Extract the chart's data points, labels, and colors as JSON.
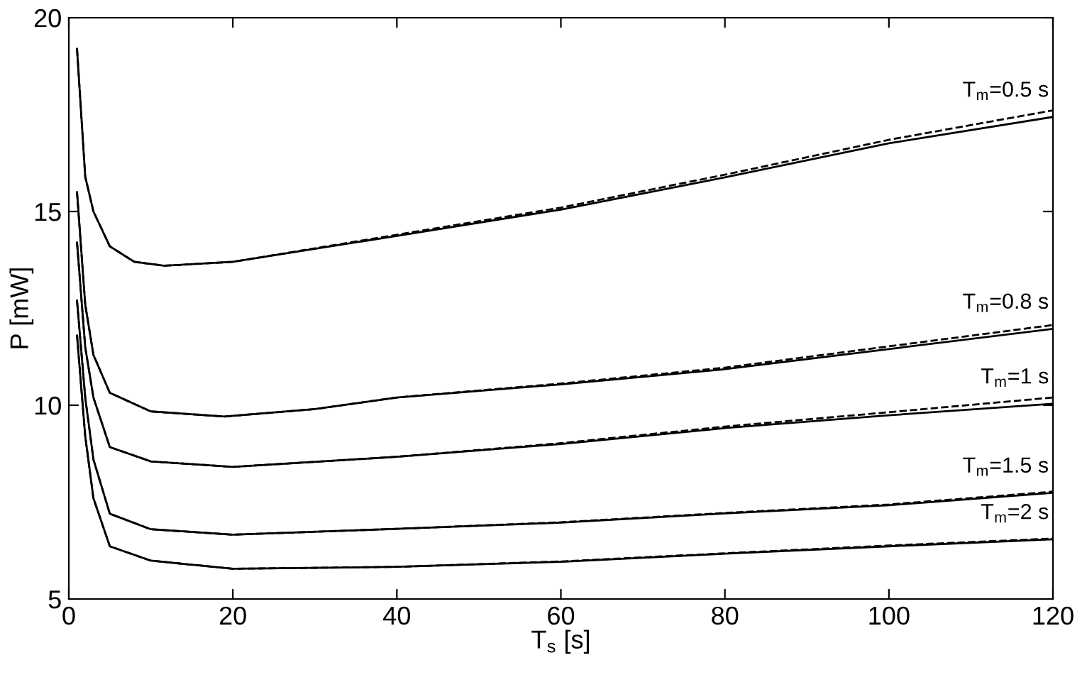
{
  "chart_data": {
    "type": "line",
    "xlabel": "T$_{s}$ [s]",
    "ylabel": "P [mW]",
    "xlim": [
      0,
      120
    ],
    "ylim": [
      5,
      20
    ],
    "xticks": [
      0,
      20,
      40,
      60,
      80,
      100,
      120
    ],
    "yticks": [
      5,
      10,
      15,
      20
    ],
    "grid": false,
    "marker": "none",
    "series": [
      {
        "color": "#000000",
        "line_style": "solid",
        "x": [
          1,
          2,
          3,
          5,
          8,
          11.6,
          20,
          40,
          60,
          80,
          100,
          120
        ],
        "values": [
          19.2,
          15.9,
          15.0,
          14.1,
          13.7,
          13.6,
          13.7,
          14.37,
          15.05,
          15.88,
          16.76,
          17.44
        ]
      },
      {
        "color": "#000000",
        "line_style": "dashed",
        "x": [
          1,
          2,
          3,
          5,
          8,
          11.6,
          20,
          40,
          60,
          80,
          100,
          120
        ],
        "values": [
          19.2,
          15.9,
          15.0,
          14.1,
          13.7,
          13.6,
          13.7,
          14.4,
          15.1,
          15.95,
          16.85,
          17.61
        ]
      },
      {
        "color": "#000000",
        "line_style": "solid",
        "x": [
          1,
          2,
          3,
          5,
          10,
          19,
          30,
          40,
          60,
          80,
          100,
          120
        ],
        "values": [
          15.5,
          12.6,
          11.3,
          10.32,
          9.84,
          9.71,
          9.9,
          10.2,
          10.54,
          10.93,
          11.45,
          11.97
        ]
      },
      {
        "color": "#000000",
        "line_style": "dashed",
        "x": [
          1,
          2,
          3,
          5,
          10,
          19,
          30,
          40,
          60,
          80,
          100,
          120
        ],
        "values": [
          15.5,
          12.6,
          11.3,
          10.32,
          9.84,
          9.71,
          9.9,
          10.2,
          10.56,
          10.97,
          11.52,
          12.07
        ]
      },
      {
        "color": "#000000",
        "line_style": "solid",
        "x": [
          1,
          2,
          3,
          5,
          10,
          20,
          40,
          60,
          80,
          100,
          120
        ],
        "values": [
          14.2,
          11.5,
          10.2,
          8.92,
          8.55,
          8.41,
          8.67,
          9.0,
          9.41,
          9.74,
          10.04
        ]
      },
      {
        "color": "#000000",
        "line_style": "dashed",
        "x": [
          1,
          2,
          3,
          5,
          10,
          20,
          40,
          60,
          80,
          100,
          120
        ],
        "values": [
          14.2,
          11.5,
          10.2,
          8.92,
          8.55,
          8.41,
          8.67,
          9.02,
          9.45,
          9.82,
          10.2
        ]
      },
      {
        "color": "#000000",
        "line_style": "solid",
        "x": [
          1,
          2,
          3,
          5,
          10,
          20,
          40,
          60,
          80,
          100,
          120
        ],
        "values": [
          12.7,
          10.2,
          8.6,
          7.2,
          6.8,
          6.66,
          6.81,
          6.97,
          7.21,
          7.42,
          7.74
        ]
      },
      {
        "color": "#000000",
        "line_style": "dashed",
        "x": [
          1,
          2,
          3,
          5,
          10,
          20,
          40,
          60,
          80,
          100,
          120
        ],
        "values": [
          12.7,
          10.2,
          8.6,
          7.2,
          6.8,
          6.66,
          6.81,
          6.98,
          7.22,
          7.44,
          7.77
        ]
      },
      {
        "color": "#000000",
        "line_style": "solid",
        "x": [
          1,
          2,
          3,
          5,
          10,
          20,
          40,
          60,
          80,
          100,
          120
        ],
        "values": [
          11.8,
          9.2,
          7.6,
          6.36,
          5.99,
          5.78,
          5.83,
          5.96,
          6.17,
          6.36,
          6.54
        ]
      },
      {
        "color": "#000000",
        "line_style": "dashed",
        "x": [
          1,
          2,
          3,
          5,
          10,
          20,
          40,
          60,
          80,
          100,
          120
        ],
        "values": [
          11.8,
          9.2,
          7.6,
          6.36,
          5.99,
          5.78,
          5.83,
          5.97,
          6.18,
          6.38,
          6.56
        ]
      }
    ],
    "annotations": [
      "T$_{m}$=0.5 s",
      "T$_{m}$=0.8 s",
      "T$_{m}$=1 s",
      "T$_{m}$=1.5 s",
      "T$_{m}$=2 s"
    ]
  }
}
